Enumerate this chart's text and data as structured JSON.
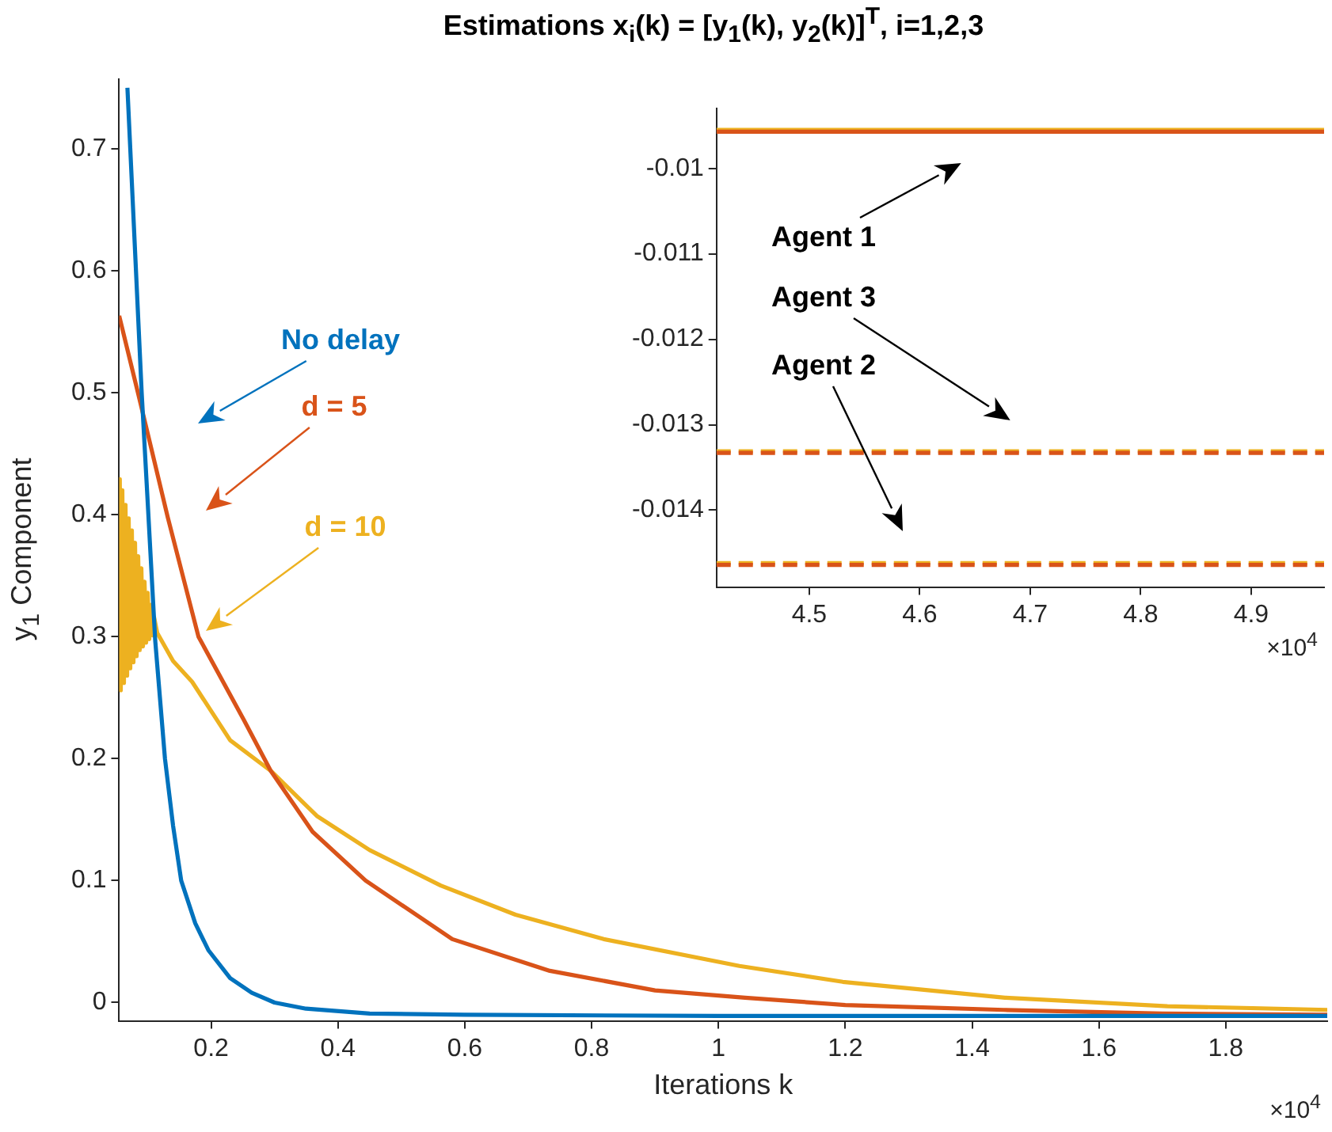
{
  "chart_data": [
    {
      "type": "line",
      "title": "Estimations x$_{i}$(k) = [y$_{1}$(k), y$_{2}$(k)]$^{T}$, i=1,2,3",
      "xlabel": "Iterations k",
      "ylabel": "y$_{1}$ Component",
      "xlim": [
        0.055,
        1.96
      ],
      "ylim": [
        -0.015,
        0.757
      ],
      "xticks": [
        0.2,
        0.4,
        0.6,
        0.8,
        1,
        1.2,
        1.4,
        1.6,
        1.8
      ],
      "yticks": [
        0,
        0.1,
        0.2,
        0.3,
        0.4,
        0.5,
        0.6,
        0.7
      ],
      "grid": false,
      "marker": "none",
      "line_style": "solid",
      "series": [
        {
          "color": "#0072bd",
          "x": [
            0.068,
            0.0905,
            0.1,
            0.1118,
            0.1272,
            0.14,
            0.1528,
            0.175,
            0.1956,
            0.23,
            0.2641,
            0.3,
            0.3495,
            0.45,
            0.6,
            1,
            1.5,
            1.96
          ],
          "values": [
            0.75,
            0.5,
            0.41,
            0.297,
            0.2,
            0.145,
            0.1,
            0.065,
            0.043,
            0.02,
            0.008,
            0.0,
            -0.005,
            -0.009,
            -0.01,
            -0.011,
            -0.011,
            -0.011
          ]
        },
        {
          "color": "#d95319",
          "x": [
            0.055,
            0.0846,
            0.1315,
            0.18,
            0.2513,
            0.294,
            0.36,
            0.4436,
            0.5803,
            0.7341,
            0.9,
            1.042,
            1.2,
            1.45,
            1.7,
            1.96
          ],
          "values": [
            0.563,
            0.5,
            0.398,
            0.3,
            0.232,
            0.19,
            0.14,
            0.1,
            0.052,
            0.026,
            0.01,
            0.004,
            -0.002,
            -0.006,
            -0.009,
            -0.01
          ]
        },
        {
          "color": "#edb120",
          "x": [
            0.055,
            0.056,
            0.0575,
            0.06,
            0.0625,
            0.065,
            0.0675,
            0.07,
            0.0725,
            0.075,
            0.0775,
            0.08,
            0.0825,
            0.085,
            0.0875,
            0.09,
            0.0925,
            0.095,
            0.0975,
            0.1,
            0.1025,
            0.105,
            0.1075,
            0.11,
            0.115,
            0.14,
            0.17,
            0.23,
            0.294,
            0.3667,
            0.45,
            0.562,
            0.68,
            0.819,
            1.033,
            1.196,
            1.452,
            1.708,
            1.96
          ],
          "values": [
            0.35,
            0.429,
            0.256,
            0.42,
            0.262,
            0.408,
            0.268,
            0.397,
            0.274,
            0.387,
            0.279,
            0.377,
            0.284,
            0.366,
            0.289,
            0.356,
            0.292,
            0.345,
            0.295,
            0.336,
            0.298,
            0.326,
            0.301,
            0.316,
            0.303,
            0.28,
            0.263,
            0.215,
            0.19,
            0.153,
            0.125,
            0.096,
            0.072,
            0.052,
            0.03,
            0.017,
            0.004,
            -0.003,
            -0.006
          ]
        }
      ],
      "annotations": [
        "No delay",
        "d = 5",
        "d = 10",
        "×10$^{4}$"
      ]
    },
    {
      "type": "line",
      "xlim": [
        4.416,
        4.966
      ],
      "ylim": [
        -0.0149,
        -0.0093
      ],
      "xticks": [
        4.5,
        4.6,
        4.7,
        4.8,
        4.9
      ],
      "yticks": [
        -0.01,
        -0.011,
        -0.012,
        -0.013,
        -0.014
      ],
      "grid": false,
      "marker": "none",
      "series": [
        {
          "color": "#d95319",
          "line_style": "solid",
          "x": [
            4.416,
            4.966
          ],
          "values": [
            -0.00957,
            -0.00957
          ]
        },
        {
          "color": "#edb120",
          "line_style": "solid",
          "x": [
            4.416,
            4.966
          ],
          "values": [
            -0.00955,
            -0.00955
          ]
        },
        {
          "color": "#d95319",
          "line_style": "dashed",
          "x": [
            4.416,
            4.966
          ],
          "values": [
            -0.01333,
            -0.01333
          ]
        },
        {
          "color": "#edb120",
          "line_style": "dashed",
          "x": [
            4.416,
            4.966
          ],
          "values": [
            -0.01331,
            -0.01331
          ]
        },
        {
          "color": "#d95319",
          "line_style": "dashed",
          "x": [
            4.416,
            4.966
          ],
          "values": [
            -0.01464,
            -0.01464
          ]
        },
        {
          "color": "#edb120",
          "line_style": "dashed",
          "x": [
            4.416,
            4.966
          ],
          "values": [
            -0.01462,
            -0.01462
          ]
        }
      ],
      "annotations": [
        "Agent 1",
        "Agent 3",
        "Agent 2",
        "×10$^{4}$"
      ]
    }
  ]
}
